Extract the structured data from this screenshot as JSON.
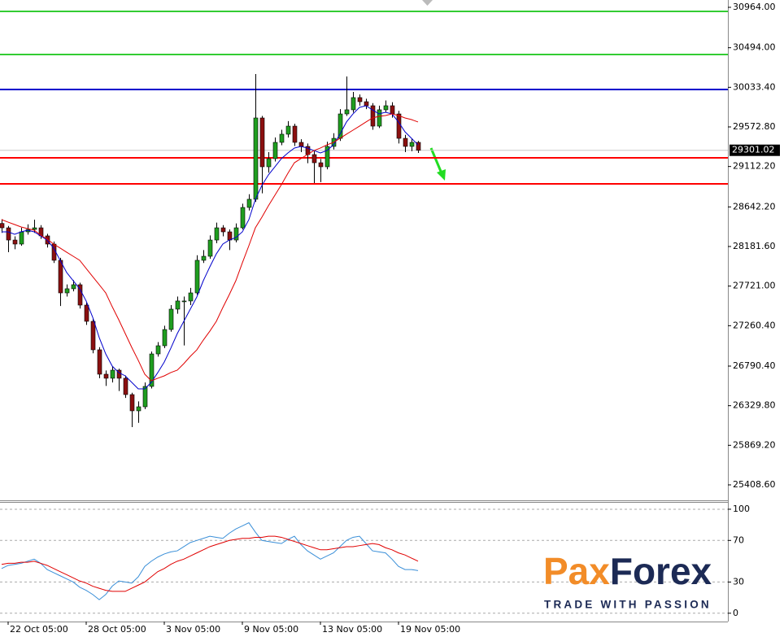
{
  "chart_data": [
    {
      "type": "candlestick",
      "categories": [
        null,
        "22 Oct 05:00",
        null,
        null,
        null,
        null,
        null,
        null,
        null,
        null,
        null,
        null,
        null,
        "28 Oct 05:00",
        null,
        null,
        null,
        null,
        null,
        null,
        null,
        null,
        null,
        null,
        null,
        "3 Nov 05:00",
        null,
        null,
        null,
        null,
        null,
        null,
        null,
        null,
        null,
        null,
        null,
        "9 Nov 05:00",
        null,
        null,
        null,
        null,
        null,
        null,
        null,
        null,
        null,
        null,
        null,
        "13 Nov 05:00",
        null,
        null,
        null,
        null,
        null,
        null,
        null,
        null,
        null,
        null,
        null,
        "19 Nov 05:00",
        null,
        null,
        null
      ],
      "open": [
        28450,
        28399,
        28257,
        28210,
        28352,
        28380,
        28399,
        28305,
        28210,
        28021,
        27642,
        27690,
        27737,
        27500,
        27311,
        26980,
        26696,
        26649,
        26743,
        26649,
        26459,
        26270,
        26317,
        26554,
        26932,
        27027,
        27216,
        27453,
        27548,
        27548,
        27642,
        28021,
        28068,
        28257,
        28399,
        28352,
        28257,
        28399,
        28636,
        28731,
        29677,
        29109,
        29204,
        29393,
        29488,
        29582,
        29393,
        29346,
        29251,
        29156,
        29109,
        29346,
        29440,
        29724,
        29772,
        29914,
        29866,
        29819,
        29582,
        29772,
        29819,
        29724,
        29440,
        29346,
        29393
      ],
      "high": [
        28500,
        28420,
        28300,
        28400,
        28440,
        28494,
        28430,
        28330,
        28240,
        28050,
        27740,
        27790,
        27760,
        27530,
        27340,
        27010,
        26740,
        26790,
        26760,
        26680,
        26480,
        26380,
        26600,
        26960,
        27070,
        27260,
        27500,
        27600,
        27600,
        27700,
        28080,
        28140,
        28310,
        28460,
        28430,
        28380,
        28450,
        28680,
        28790,
        30188,
        29700,
        29280,
        29450,
        29540,
        29640,
        29610,
        29430,
        29380,
        29290,
        29200,
        29400,
        29500,
        29780,
        30160,
        29980,
        29950,
        29900,
        29850,
        29820,
        29880,
        29860,
        29760,
        29480,
        29440,
        29410
      ],
      "low": [
        28340,
        28115,
        28150,
        28190,
        28320,
        28340,
        28270,
        28170,
        27990,
        27490,
        27600,
        27660,
        27460,
        27270,
        26940,
        26650,
        26560,
        26600,
        26500,
        26420,
        26081,
        26130,
        26290,
        26530,
        26900,
        27000,
        27190,
        27400,
        27030,
        27500,
        27620,
        27990,
        28040,
        28220,
        28300,
        28140,
        28230,
        28380,
        28600,
        28700,
        28800,
        29040,
        29170,
        29360,
        29450,
        29350,
        29280,
        29150,
        28920,
        28930,
        29080,
        29310,
        29410,
        29700,
        29740,
        29820,
        29780,
        29540,
        29560,
        29740,
        29680,
        29380,
        29280,
        29290,
        29270
      ],
      "close": [
        28399,
        28257,
        28210,
        28352,
        28380,
        28399,
        28305,
        28210,
        28021,
        27642,
        27690,
        27737,
        27500,
        27311,
        26980,
        26696,
        26649,
        26743,
        26649,
        26459,
        26270,
        26317,
        26554,
        26932,
        27027,
        27216,
        27453,
        27548,
        27548,
        27642,
        28021,
        28068,
        28257,
        28399,
        28352,
        28257,
        28399,
        28636,
        28731,
        29677,
        29109,
        29204,
        29393,
        29488,
        29582,
        29393,
        29346,
        29251,
        29156,
        29109,
        29346,
        29440,
        29724,
        29772,
        29914,
        29866,
        29819,
        29582,
        29772,
        29819,
        29724,
        29440,
        29346,
        29393,
        29301.02
      ],
      "up_color": "#1f9e1f",
      "down_color": "#8b1010",
      "series": [
        {
          "color": "#0000cc",
          "values": [
            28352,
            28352,
            28324,
            28352,
            28371,
            28352,
            28305,
            28257,
            28163,
            28021,
            27879,
            27784,
            27690,
            27547,
            27358,
            27122,
            26932,
            26790,
            26715,
            26677,
            26601,
            26525,
            26525,
            26601,
            26715,
            26838,
            26998,
            27169,
            27311,
            27453,
            27595,
            27784,
            27945,
            28096,
            28210,
            28257,
            28286,
            28352,
            28494,
            28730,
            28891,
            29014,
            29109,
            29204,
            29270,
            29327,
            29345,
            29327,
            29298,
            29270,
            29298,
            29364,
            29488,
            29630,
            29724,
            29800,
            29819,
            29771,
            29724,
            29743,
            29724,
            29630,
            29516,
            29440,
            29364
          ]
        },
        {
          "color": "#e00000",
          "values": [
            28494,
            28465,
            28437,
            28409,
            28390,
            28371,
            28314,
            28267,
            28210,
            28163,
            28115,
            28068,
            28021,
            27926,
            27831,
            27737,
            27642,
            27481,
            27330,
            27169,
            27008,
            26857,
            26696,
            26620,
            26649,
            26677,
            26715,
            26743,
            26819,
            26904,
            26979,
            27093,
            27197,
            27311,
            27472,
            27623,
            27784,
            27992,
            28191,
            28399,
            28522,
            28655,
            28778,
            28901,
            29033,
            29156,
            29204,
            29251,
            29298,
            29327,
            29364,
            29393,
            29440,
            29488,
            29535,
            29582,
            29630,
            29677,
            29696,
            29705,
            29724,
            29705,
            29677,
            29658,
            29630
          ]
        }
      ],
      "levels": [
        {
          "color": "#33cc33",
          "value": 30917
        },
        {
          "color": "#33cc33",
          "value": 30415
        },
        {
          "color": "#0000cc",
          "value": 30008
        },
        {
          "color": "#ff0000",
          "value": 29213
        },
        {
          "color": "#ff0000",
          "value": 28910
        }
      ],
      "current_price": 29301.02,
      "ylim": [
        25228.8,
        31049.2
      ],
      "yticks": [
        {
          "value": 30964,
          "label": "30964.00"
        },
        {
          "value": 30494,
          "label": "30494.00"
        },
        {
          "value": 30033.4,
          "label": "30033.40"
        },
        {
          "value": 29572.8,
          "label": "29572.80"
        },
        {
          "value": 29112.2,
          "label": "29112.20"
        },
        {
          "value": 28642.2,
          "label": "28642.20"
        },
        {
          "value": 28181.6,
          "label": "28181.60"
        },
        {
          "value": 27721,
          "label": "27721.00"
        },
        {
          "value": 27260.4,
          "label": "27260.40"
        },
        {
          "value": 26790.4,
          "label": "26790.40"
        },
        {
          "value": 26329.8,
          "label": "26329.80"
        },
        {
          "value": 25869.2,
          "label": "25869.20"
        },
        {
          "value": 25408.6,
          "label": "25408.60"
        }
      ]
    },
    {
      "type": "line",
      "series": [
        {
          "color": "#3a8fd8",
          "values": [
            43,
            46,
            47,
            48,
            50,
            52,
            48,
            42,
            39,
            36,
            33,
            30,
            25,
            22,
            18,
            13,
            18,
            26,
            31,
            30,
            29,
            35,
            45,
            50,
            54,
            57,
            59,
            60,
            64,
            68,
            70,
            72,
            74,
            73,
            72,
            77,
            81,
            84,
            87,
            78,
            70,
            69,
            68,
            67,
            71,
            74,
            66,
            60,
            56,
            52,
            55,
            58,
            64,
            70,
            73,
            74,
            67,
            60,
            59,
            58,
            52,
            45,
            42,
            42,
            41
          ]
        },
        {
          "color": "#e00000",
          "values": [
            47,
            48,
            48,
            49,
            49,
            50,
            48,
            46,
            43,
            40,
            37,
            34,
            31,
            29,
            26,
            24,
            22,
            21,
            21,
            21,
            24,
            27,
            30,
            35,
            40,
            43,
            47,
            50,
            52,
            55,
            58,
            61,
            64,
            66,
            68,
            70,
            71,
            72,
            72,
            73,
            73,
            74,
            74,
            73,
            71,
            69,
            67,
            65,
            63,
            61,
            61,
            62,
            63,
            64,
            64,
            65,
            66,
            67,
            66,
            63,
            61,
            58,
            56,
            53,
            50
          ]
        }
      ],
      "ylim": [
        -8,
        107
      ],
      "yticks": [
        100,
        70,
        30,
        0
      ]
    }
  ],
  "logo": {
    "brand": [
      "Pax",
      "Forex"
    ],
    "tagline": "TRADE WITH PASSION"
  }
}
